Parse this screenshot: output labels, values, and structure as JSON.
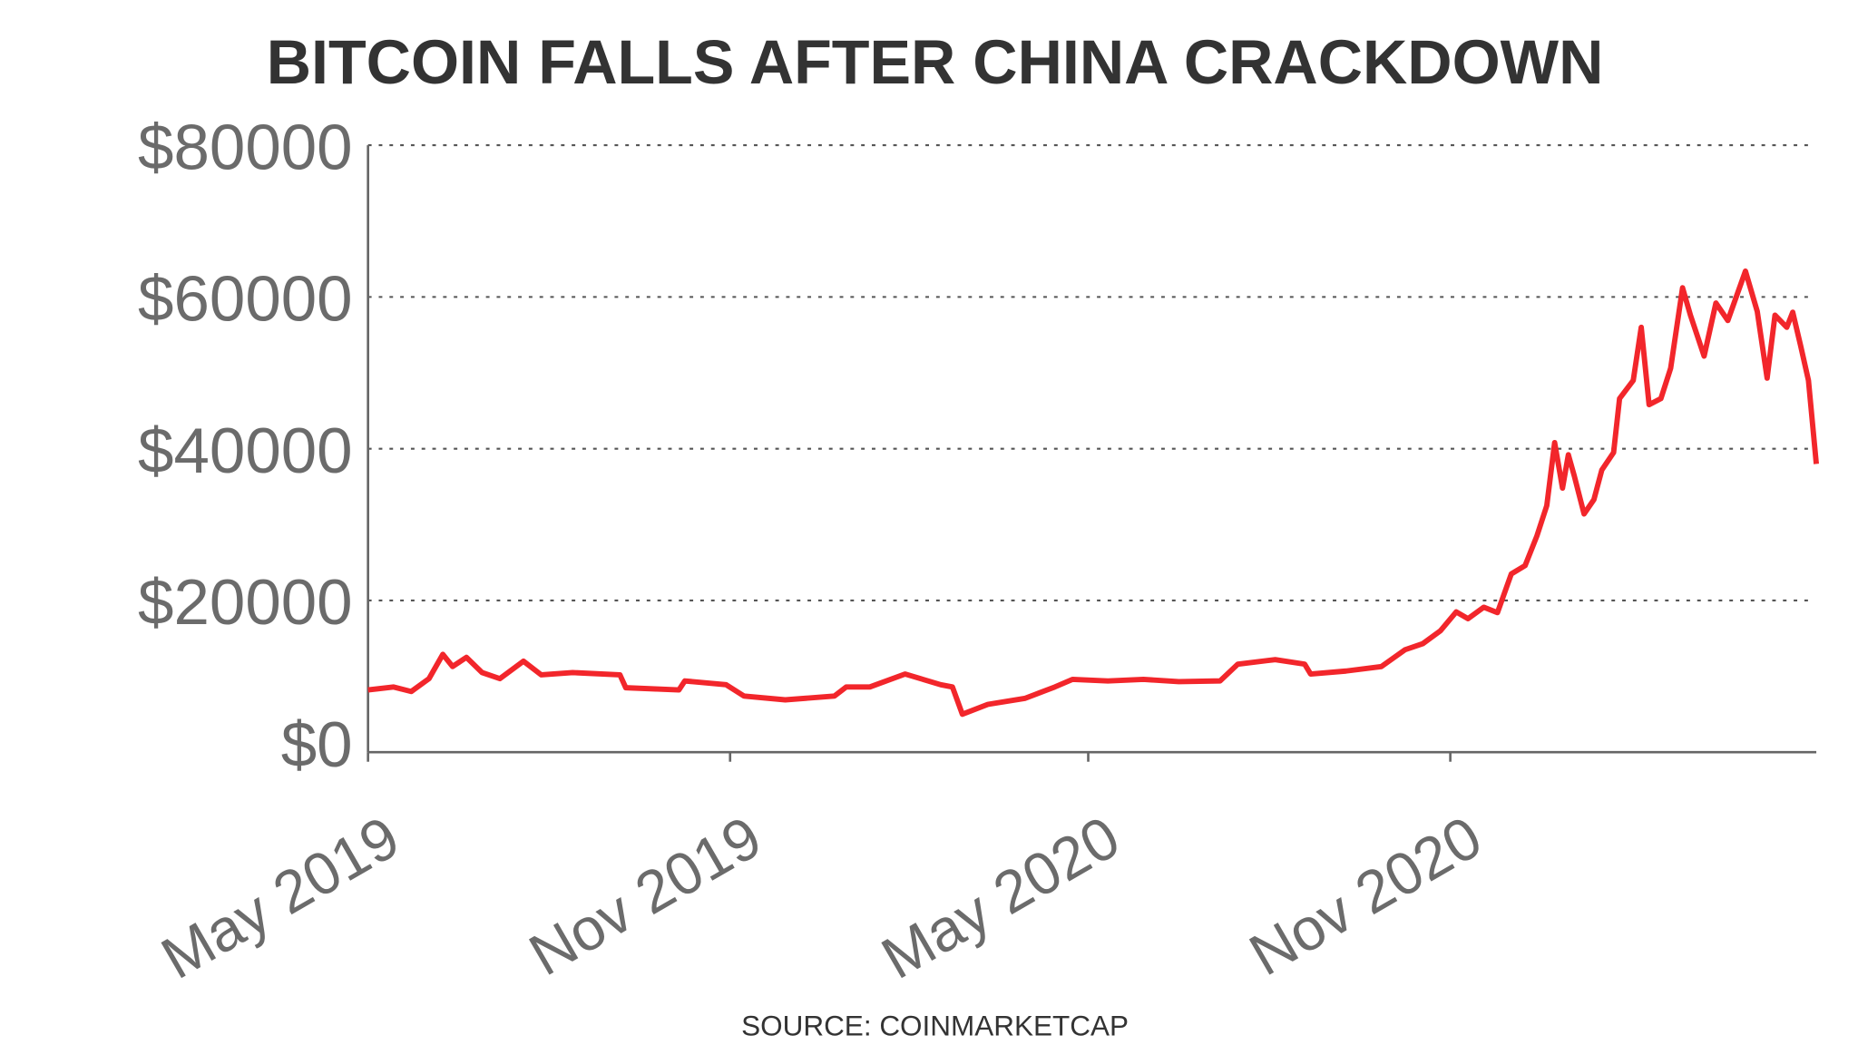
{
  "chart_data": {
    "type": "line",
    "title": "BITCOIN FALLS AFTER CHINA CRACKDOWN",
    "source": "SOURCE: COINMARKETCAP",
    "xlabel": "",
    "ylabel": "",
    "ylim": [
      0,
      80000
    ],
    "xlim": [
      "2019-05-01",
      "2021-05-06"
    ],
    "grid": "horizontal dotted",
    "line_color": "#f2262b",
    "yticks": [
      0,
      20000,
      40000,
      60000,
      80000
    ],
    "ytick_labels": [
      "$0",
      "$20000",
      "$40000",
      "$60000",
      "$80000"
    ],
    "xticks": [
      "2019-05-01",
      "2019-11-01",
      "2020-05-01",
      "2020-11-01"
    ],
    "xtick_labels": [
      "May 2019",
      "Nov 2019",
      "May 2020",
      "Nov 2020"
    ],
    "series": [
      {
        "x": [
          "2019-05-01",
          "2019-05-14",
          "2019-05-23",
          "2019-06-01",
          "2019-06-08",
          "2019-06-13",
          "2019-06-20",
          "2019-06-28",
          "2019-07-07",
          "2019-07-19",
          "2019-07-28",
          "2019-08-13",
          "2019-09-06",
          "2019-09-09",
          "2019-10-06",
          "2019-10-09",
          "2019-10-30",
          "2019-11-08",
          "2019-11-29",
          "2019-12-24",
          "2019-12-30",
          "2020-01-11",
          "2020-01-29",
          "2020-02-16",
          "2020-02-22",
          "2020-02-27",
          "2020-03-11",
          "2020-03-30",
          "2020-04-14",
          "2020-04-23",
          "2020-05-11",
          "2020-05-29",
          "2020-06-16",
          "2020-07-07",
          "2020-07-16",
          "2020-08-04",
          "2020-08-19",
          "2020-08-22",
          "2020-09-09",
          "2020-09-27",
          "2020-10-09",
          "2020-10-18",
          "2020-10-27",
          "2020-11-04",
          "2020-11-10",
          "2020-11-18",
          "2020-11-25",
          "2020-12-02",
          "2020-12-09",
          "2020-12-15",
          "2020-12-20",
          "2020-12-24",
          "2020-12-28",
          "2020-12-31",
          "2021-01-03",
          "2021-01-08",
          "2021-01-13",
          "2021-01-17",
          "2021-01-23",
          "2021-01-26",
          "2021-02-02",
          "2021-02-06",
          "2021-02-10",
          "2021-02-16",
          "2021-02-21",
          "2021-02-27",
          "2021-03-03",
          "2021-03-10",
          "2021-03-16",
          "2021-03-22",
          "2021-03-31",
          "2021-04-06",
          "2021-04-11",
          "2021-04-15",
          "2021-04-21",
          "2021-04-24",
          "2021-04-28",
          "2021-05-02",
          "2021-05-04",
          "2021-05-06"
        ],
        "y": [
          8200,
          8600,
          8000,
          9700,
          12900,
          11300,
          12500,
          10500,
          9700,
          12000,
          10200,
          10500,
          10200,
          8500,
          8200,
          9400,
          8900,
          7400,
          6900,
          7400,
          8600,
          8600,
          10300,
          8900,
          8600,
          5000,
          6300,
          7100,
          8600,
          9600,
          9400,
          9600,
          9300,
          9400,
          11600,
          12200,
          11600,
          10300,
          10700,
          11300,
          13500,
          14300,
          16000,
          18500,
          17600,
          19100,
          18400,
          23500,
          24600,
          28500,
          32500,
          40800,
          34800,
          39200,
          36400,
          31400,
          33300,
          37200,
          39500,
          46600,
          49000,
          56000,
          45800,
          46600,
          50600,
          61200,
          57600,
          52200,
          59200,
          56900,
          63400,
          58100,
          49300,
          57600,
          56000,
          58000,
          53600,
          49000,
          43500,
          38000
        ]
      }
    ]
  }
}
